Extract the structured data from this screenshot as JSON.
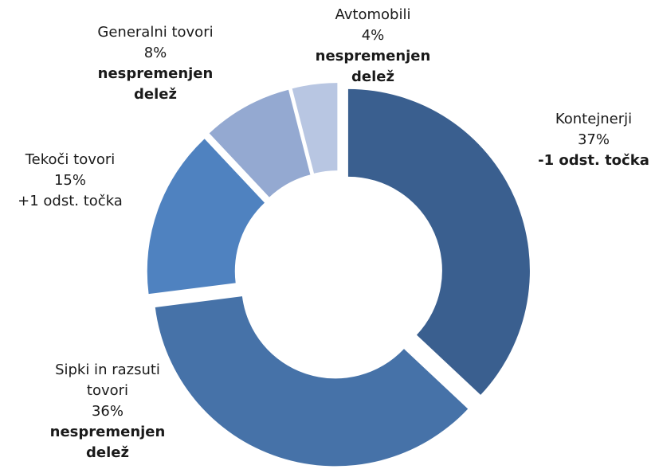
{
  "chart_data": {
    "type": "donut",
    "categories": [
      "Kontejnerji",
      "Sipki in razsuti tovori",
      "Tekoči tovori",
      "Generalni tovori",
      "Avtomobili"
    ],
    "values": [
      37,
      36,
      15,
      8,
      4
    ],
    "value_labels": [
      "37%",
      "36%",
      "15%",
      "8%",
      "4%"
    ],
    "notes": [
      "-1 odst. točka",
      "nespremenjen delež",
      "+1 odst. točka",
      "nespremenjen delež",
      "nespremenjen delež"
    ],
    "notes_bold": [
      true,
      true,
      false,
      true,
      true
    ],
    "colors": [
      "#3a5f8f",
      "#4672a8",
      "#4f82c0",
      "#94a9d1",
      "#b8c6e2"
    ]
  }
}
